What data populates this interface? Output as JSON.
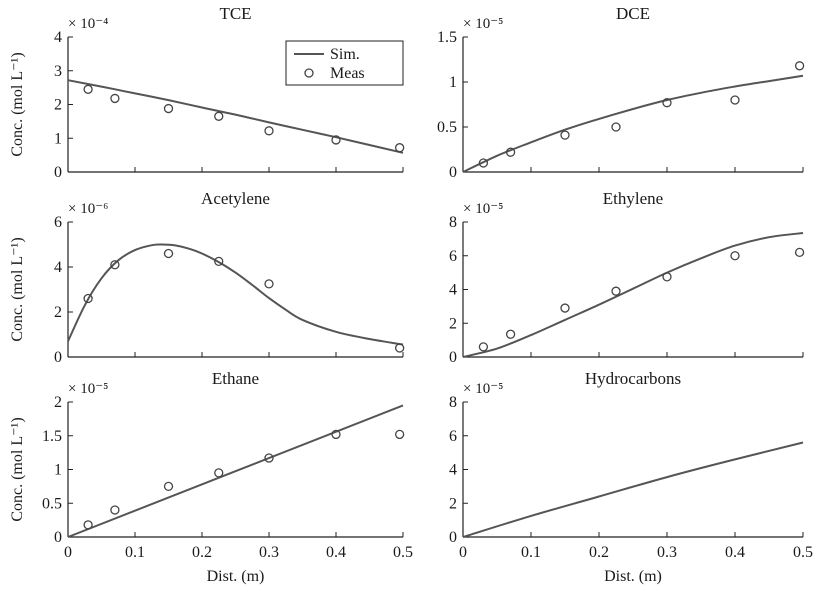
{
  "figure": {
    "colors": {
      "sim_line": "#555555",
      "markers": "#444444",
      "axes": "#222222"
    },
    "legend": {
      "sim_label": "Sim.",
      "meas_label": "Meas",
      "placement": "top-right of TCE panel"
    }
  },
  "chart_data": [
    {
      "type": "line",
      "title": "TCE",
      "ylabel": "Conc. (mol L⁻¹)",
      "xlabel": "",
      "multiplier": "× 10⁻⁴",
      "xlim": [
        0,
        0.5
      ],
      "ylim": [
        0,
        4
      ],
      "yticks": [
        0,
        1,
        2,
        3,
        4
      ],
      "yticklabels": [
        "0",
        "1",
        "2",
        "3",
        "4"
      ],
      "xticks": [
        0,
        0.1,
        0.2,
        0.3,
        0.4,
        0.5
      ],
      "xticklabels": [],
      "legend": true,
      "series": [
        {
          "name": "Sim.",
          "kind": "line",
          "x": [
            0,
            0.05,
            0.1,
            0.15,
            0.2,
            0.25,
            0.3,
            0.35,
            0.4,
            0.45,
            0.5
          ],
          "y": [
            2.72,
            2.53,
            2.33,
            2.13,
            1.91,
            1.7,
            1.47,
            1.25,
            1.03,
            0.8,
            0.57
          ]
        },
        {
          "name": "Meas",
          "kind": "markers",
          "x": [
            0.03,
            0.07,
            0.15,
            0.225,
            0.3,
            0.4,
            0.495
          ],
          "y": [
            2.45,
            2.18,
            1.88,
            1.65,
            1.22,
            0.95,
            0.72
          ]
        }
      ]
    },
    {
      "type": "line",
      "title": "DCE",
      "ylabel": "",
      "xlabel": "",
      "multiplier": "× 10⁻⁵",
      "xlim": [
        0,
        0.5
      ],
      "ylim": [
        0,
        1.5
      ],
      "yticks": [
        0,
        0.5,
        1,
        1.5
      ],
      "yticklabels": [
        "0",
        "0.5",
        "1",
        "1.5"
      ],
      "xticks": [
        0,
        0.1,
        0.2,
        0.3,
        0.4,
        0.5
      ],
      "xticklabels": [],
      "legend": false,
      "series": [
        {
          "name": "Sim.",
          "kind": "line",
          "x": [
            0,
            0.05,
            0.1,
            0.15,
            0.2,
            0.25,
            0.3,
            0.35,
            0.4,
            0.45,
            0.5
          ],
          "y": [
            0,
            0.18,
            0.33,
            0.47,
            0.59,
            0.7,
            0.8,
            0.88,
            0.95,
            1.01,
            1.07
          ]
        },
        {
          "name": "Meas",
          "kind": "markers",
          "x": [
            0.03,
            0.07,
            0.15,
            0.225,
            0.3,
            0.4,
            0.495
          ],
          "y": [
            0.1,
            0.22,
            0.41,
            0.5,
            0.77,
            0.8,
            1.18
          ]
        }
      ]
    },
    {
      "type": "line",
      "title": "Acetylene",
      "ylabel": "Conc. (mol L⁻¹)",
      "xlabel": "",
      "multiplier": "× 10⁻⁶",
      "xlim": [
        0,
        0.5
      ],
      "ylim": [
        0,
        6
      ],
      "yticks": [
        0,
        2,
        4,
        6
      ],
      "yticklabels": [
        "0",
        "2",
        "4",
        "6"
      ],
      "xticks": [
        0,
        0.1,
        0.2,
        0.3,
        0.4,
        0.5
      ],
      "xticklabels": [],
      "legend": false,
      "series": [
        {
          "name": "Sim.",
          "kind": "line",
          "x": [
            0,
            0.025,
            0.05,
            0.075,
            0.1,
            0.125,
            0.14,
            0.16,
            0.18,
            0.2,
            0.225,
            0.25,
            0.275,
            0.3,
            0.325,
            0.35,
            0.4,
            0.45,
            0.5
          ],
          "y": [
            0.7,
            2.3,
            3.5,
            4.3,
            4.75,
            4.97,
            5.0,
            4.96,
            4.82,
            4.6,
            4.22,
            3.75,
            3.2,
            2.62,
            2.1,
            1.65,
            1.12,
            0.8,
            0.55
          ]
        },
        {
          "name": "Meas",
          "kind": "markers",
          "x": [
            0.03,
            0.07,
            0.15,
            0.225,
            0.3,
            0.495
          ],
          "y": [
            2.6,
            4.1,
            4.6,
            4.25,
            3.25,
            0.4
          ]
        }
      ]
    },
    {
      "type": "line",
      "title": "Ethylene",
      "ylabel": "",
      "xlabel": "",
      "multiplier": "× 10⁻⁵",
      "xlim": [
        0,
        0.5
      ],
      "ylim": [
        0,
        8
      ],
      "yticks": [
        0,
        2,
        4,
        6,
        8
      ],
      "yticklabels": [
        "0",
        "2",
        "4",
        "6",
        "8"
      ],
      "xticks": [
        0,
        0.1,
        0.2,
        0.3,
        0.4,
        0.5
      ],
      "xticklabels": [],
      "legend": false,
      "series": [
        {
          "name": "Sim.",
          "kind": "line",
          "x": [
            0,
            0.05,
            0.1,
            0.15,
            0.2,
            0.25,
            0.3,
            0.35,
            0.4,
            0.45,
            0.5
          ],
          "y": [
            0,
            0.5,
            1.3,
            2.2,
            3.1,
            4.05,
            5.0,
            5.85,
            6.6,
            7.1,
            7.35
          ]
        },
        {
          "name": "Meas",
          "kind": "markers",
          "x": [
            0.03,
            0.07,
            0.15,
            0.225,
            0.3,
            0.4,
            0.495
          ],
          "y": [
            0.6,
            1.35,
            2.9,
            3.9,
            4.75,
            6.0,
            6.2
          ]
        }
      ]
    },
    {
      "type": "line",
      "title": "Ethane",
      "ylabel": "Conc. (mol L⁻¹)",
      "xlabel": "Dist. (m)",
      "multiplier": "× 10⁻⁵",
      "xlim": [
        0,
        0.5
      ],
      "ylim": [
        0,
        2
      ],
      "yticks": [
        0,
        0.5,
        1,
        1.5,
        2
      ],
      "yticklabels": [
        "0",
        "0.5",
        "1",
        "1.5",
        "2"
      ],
      "xticks": [
        0,
        0.1,
        0.2,
        0.3,
        0.4,
        0.5
      ],
      "xticklabels": [
        "0",
        "0.1",
        "0.2",
        "0.3",
        "0.4",
        "0.5"
      ],
      "legend": false,
      "series": [
        {
          "name": "Sim.",
          "kind": "line",
          "x": [
            0,
            0.5
          ],
          "y": [
            0,
            1.95
          ]
        },
        {
          "name": "Meas",
          "kind": "markers",
          "x": [
            0.03,
            0.07,
            0.15,
            0.225,
            0.3,
            0.4,
            0.495
          ],
          "y": [
            0.18,
            0.4,
            0.75,
            0.95,
            1.17,
            1.52,
            1.52
          ]
        }
      ]
    },
    {
      "type": "line",
      "title": "Hydrocarbons",
      "ylabel": "",
      "xlabel": "Dist. (m)",
      "multiplier": "× 10⁻⁵",
      "xlim": [
        0,
        0.5
      ],
      "ylim": [
        0,
        8
      ],
      "yticks": [
        0,
        2,
        4,
        6,
        8
      ],
      "yticklabels": [
        "0",
        "2",
        "4",
        "6",
        "8"
      ],
      "xticks": [
        0,
        0.1,
        0.2,
        0.3,
        0.4,
        0.5
      ],
      "xticklabels": [
        "0",
        "0.1",
        "0.2",
        "0.3",
        "0.4",
        "0.5"
      ],
      "legend": false,
      "series": [
        {
          "name": "Sim.",
          "kind": "line",
          "x": [
            0,
            0.1,
            0.2,
            0.3,
            0.4,
            0.5
          ],
          "y": [
            0,
            1.25,
            2.4,
            3.55,
            4.6,
            5.6
          ]
        }
      ]
    }
  ]
}
